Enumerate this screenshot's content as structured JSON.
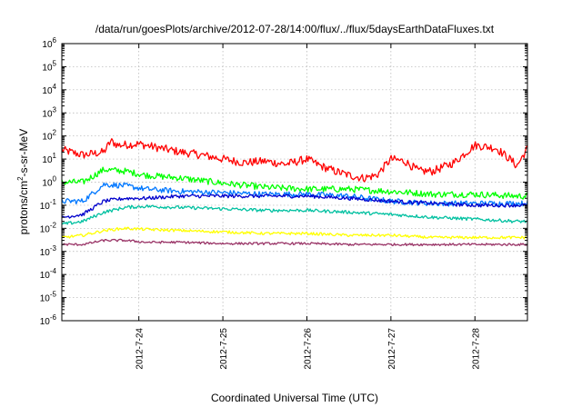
{
  "chart_data": {
    "type": "line",
    "title": "/data/run/goesPlots/archive/2012-07-28/14:00/flux/../flux/5daysEarthDataFluxes.txt",
    "xlabel": "Coordinated Universal Time (UTC)",
    "ylabel": "protons/cm²-s-sr-MeV",
    "ylabel_parts": {
      "a": "protons/cm",
      "sup": "2",
      "b": "-s-sr-MeV"
    },
    "yscale": "log",
    "ylim": [
      1e-06,
      1000000.0
    ],
    "yticks": [
      {
        "base": "10",
        "exp": "-6",
        "value": 1e-06
      },
      {
        "base": "10",
        "exp": "-5",
        "value": 1e-05
      },
      {
        "base": "10",
        "exp": "-4",
        "value": 0.0001
      },
      {
        "base": "10",
        "exp": "-3",
        "value": 0.001
      },
      {
        "base": "10",
        "exp": "-2",
        "value": 0.01
      },
      {
        "base": "10",
        "exp": "-1",
        "value": 0.1
      },
      {
        "base": "10",
        "exp": "0",
        "value": 1
      },
      {
        "base": "10",
        "exp": "1",
        "value": 10
      },
      {
        "base": "10",
        "exp": "2",
        "value": 100
      },
      {
        "base": "10",
        "exp": "3",
        "value": 1000
      },
      {
        "base": "10",
        "exp": "4",
        "value": 10000
      },
      {
        "base": "10",
        "exp": "5",
        "value": 100000
      },
      {
        "base": "10",
        "exp": "6",
        "value": 1000000
      }
    ],
    "xlim": [
      "2012-07-23 02:00",
      "2012-07-28 15:00"
    ],
    "xticks": [
      "2012-7-24",
      "2012-7-25",
      "2012-7-26",
      "2012-7-27",
      "2012-7-28"
    ],
    "grid": true,
    "series": [
      {
        "color": "#ff0000",
        "noise": 0.18,
        "x": [
          "2012-07-23 02:00",
          "2012-07-23 08:00",
          "2012-07-23 14:00",
          "2012-07-23 16:00",
          "2012-07-23 18:00",
          "2012-07-24 00:00",
          "2012-07-24 06:00",
          "2012-07-24 12:00",
          "2012-07-24 18:00",
          "2012-07-25 00:00",
          "2012-07-25 06:00",
          "2012-07-25 12:00",
          "2012-07-25 18:00",
          "2012-07-26 00:00",
          "2012-07-26 04:00",
          "2012-07-26 08:00",
          "2012-07-26 12:00",
          "2012-07-26 16:00",
          "2012-07-26 20:00",
          "2012-07-27 00:00",
          "2012-07-27 04:00",
          "2012-07-27 08:00",
          "2012-07-27 12:00",
          "2012-07-27 18:00",
          "2012-07-28 00:00",
          "2012-07-28 06:00",
          "2012-07-28 10:00",
          "2012-07-28 12:00",
          "2012-07-28 15:00"
        ],
        "y": [
          25,
          15,
          20,
          60,
          40,
          45,
          30,
          20,
          15,
          10,
          7,
          8,
          6,
          10,
          5,
          3,
          2,
          1.5,
          2,
          10,
          8,
          3,
          3,
          7,
          40,
          30,
          10,
          5,
          30
        ]
      },
      {
        "color": "#00ff00",
        "noise": 0.14,
        "x": [
          "2012-07-23 02:00",
          "2012-07-23 08:00",
          "2012-07-23 14:00",
          "2012-07-23 20:00",
          "2012-07-24 02:00",
          "2012-07-24 12:00",
          "2012-07-25 00:00",
          "2012-07-25 12:00",
          "2012-07-26 00:00",
          "2012-07-26 12:00",
          "2012-07-27 00:00",
          "2012-07-27 12:00",
          "2012-07-28 00:00",
          "2012-07-28 12:00",
          "2012-07-28 15:00"
        ],
        "y": [
          1,
          1,
          3.5,
          3,
          2,
          1.5,
          0.9,
          0.6,
          0.5,
          0.5,
          0.4,
          0.3,
          0.3,
          0.25,
          0.25
        ]
      },
      {
        "color": "#0077ff",
        "noise": 0.12,
        "x": [
          "2012-07-23 02:00",
          "2012-07-23 08:00",
          "2012-07-23 14:00",
          "2012-07-23 20:00",
          "2012-07-24 02:00",
          "2012-07-24 12:00",
          "2012-07-25 00:00",
          "2012-07-25 12:00",
          "2012-07-26 00:00",
          "2012-07-26 12:00",
          "2012-07-27 00:00",
          "2012-07-27 12:00",
          "2012-07-28 00:00",
          "2012-07-28 12:00",
          "2012-07-28 15:00"
        ],
        "y": [
          0.15,
          0.15,
          0.8,
          0.7,
          0.5,
          0.4,
          0.35,
          0.3,
          0.3,
          0.25,
          0.15,
          0.12,
          0.12,
          0.12,
          0.12
        ]
      },
      {
        "color": "#0000cc",
        "noise": 0.08,
        "x": [
          "2012-07-23 02:00",
          "2012-07-23 08:00",
          "2012-07-23 14:00",
          "2012-07-23 20:00",
          "2012-07-24 02:00",
          "2012-07-24 12:00",
          "2012-07-25 00:00",
          "2012-07-25 12:00",
          "2012-07-26 00:00",
          "2012-07-26 12:00",
          "2012-07-27 00:00",
          "2012-07-27 12:00",
          "2012-07-28 00:00",
          "2012-07-28 12:00",
          "2012-07-28 15:00"
        ],
        "y": [
          0.03,
          0.04,
          0.15,
          0.2,
          0.2,
          0.25,
          0.25,
          0.25,
          0.25,
          0.2,
          0.15,
          0.12,
          0.1,
          0.1,
          0.1
        ]
      },
      {
        "color": "#00c0a0",
        "noise": 0.07,
        "x": [
          "2012-07-23 02:00",
          "2012-07-23 08:00",
          "2012-07-23 14:00",
          "2012-07-23 20:00",
          "2012-07-24 02:00",
          "2012-07-24 12:00",
          "2012-07-25 00:00",
          "2012-07-25 12:00",
          "2012-07-26 00:00",
          "2012-07-26 12:00",
          "2012-07-27 00:00",
          "2012-07-27 12:00",
          "2012-07-28 00:00",
          "2012-07-28 12:00",
          "2012-07-28 15:00"
        ],
        "y": [
          0.015,
          0.02,
          0.05,
          0.08,
          0.09,
          0.08,
          0.07,
          0.06,
          0.06,
          0.05,
          0.04,
          0.03,
          0.025,
          0.02,
          0.02
        ]
      },
      {
        "color": "#ffff00",
        "noise": 0.06,
        "x": [
          "2012-07-23 02:00",
          "2012-07-23 08:00",
          "2012-07-23 14:00",
          "2012-07-23 20:00",
          "2012-07-24 02:00",
          "2012-07-24 12:00",
          "2012-07-25 00:00",
          "2012-07-25 12:00",
          "2012-07-26 00:00",
          "2012-07-26 12:00",
          "2012-07-27 00:00",
          "2012-07-27 12:00",
          "2012-07-28 00:00",
          "2012-07-28 12:00",
          "2012-07-28 15:00"
        ],
        "y": [
          0.004,
          0.005,
          0.008,
          0.01,
          0.009,
          0.008,
          0.007,
          0.006,
          0.006,
          0.005,
          0.005,
          0.004,
          0.004,
          0.004,
          0.004
        ]
      },
      {
        "color": "#993366",
        "noise": 0.05,
        "x": [
          "2012-07-23 02:00",
          "2012-07-23 08:00",
          "2012-07-23 14:00",
          "2012-07-23 20:00",
          "2012-07-24 02:00",
          "2012-07-24 12:00",
          "2012-07-25 00:00",
          "2012-07-25 12:00",
          "2012-07-26 00:00",
          "2012-07-26 12:00",
          "2012-07-27 00:00",
          "2012-07-27 12:00",
          "2012-07-28 00:00",
          "2012-07-28 12:00",
          "2012-07-28 15:00"
        ],
        "y": [
          0.002,
          0.002,
          0.003,
          0.003,
          0.0025,
          0.0025,
          0.0022,
          0.0022,
          0.0022,
          0.002,
          0.002,
          0.002,
          0.002,
          0.002,
          0.002
        ]
      }
    ]
  }
}
